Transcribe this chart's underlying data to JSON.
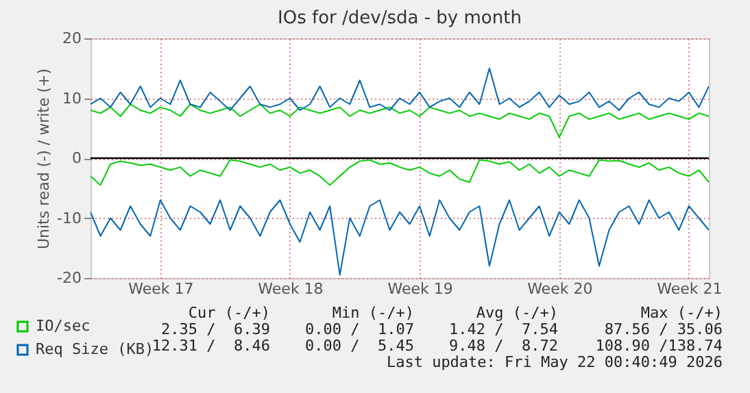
{
  "chart_data": {
    "type": "line",
    "title": "IOs for /dev/sda - by month",
    "ylabel": "Units read (-) / write (+)",
    "categories": [
      null,
      null,
      null,
      null,
      null,
      null,
      null,
      "Week 17",
      null,
      null,
      null,
      null,
      null,
      null,
      null,
      null,
      null,
      null,
      null,
      null,
      "Week 18",
      null,
      null,
      null,
      null,
      null,
      null,
      null,
      null,
      null,
      null,
      null,
      null,
      "Week 19",
      null,
      null,
      null,
      null,
      null,
      null,
      null,
      null,
      null,
      null,
      null,
      null,
      null,
      "Week 20",
      null,
      null,
      null,
      null,
      null,
      null,
      null,
      null,
      null,
      null,
      null,
      null,
      "Week 21",
      null,
      null
    ],
    "ylim": [
      -20,
      20
    ],
    "yticks": [
      -20,
      -10,
      0,
      10,
      20
    ],
    "grid": true,
    "legend": "bottom left",
    "series": [
      {
        "color": "#00cc00",
        "values": [
          -3,
          -4.5,
          -1,
          -0.5,
          -0.8,
          -1.2,
          -1,
          -1.5,
          -2,
          -1.5,
          -3,
          -2,
          -2.5,
          -3,
          -0.3,
          -0.5,
          -1,
          -1.5,
          -1,
          -2,
          -1.5,
          -2.5,
          -2,
          -3,
          -4.5,
          -3,
          -1.5,
          -0.5,
          -0.3,
          -1,
          -0.8,
          -1.5,
          -2,
          -1.5,
          -2.5,
          -3,
          -2,
          -3.5,
          -4,
          -0.3,
          -0.5,
          -1,
          -0.6,
          -2,
          -1,
          -2.5,
          -1.5,
          -3,
          -2,
          -2.5,
          -3,
          -0.3,
          -0.5,
          -0.4,
          -1,
          -1.5,
          -0.8,
          -2,
          -1.5,
          -2.5,
          -3,
          -2,
          -4
        ]
      },
      {
        "name": "IO/sec",
        "color": "#00cc00",
        "values": [
          8,
          7.5,
          8.5,
          7,
          9,
          8,
          7.5,
          8.5,
          8,
          7,
          9,
          8,
          7.5,
          8,
          8.5,
          7,
          8,
          9,
          7.5,
          8,
          7,
          8.5,
          8,
          7.5,
          8,
          8.5,
          7,
          8,
          7.5,
          8,
          8.5,
          7.5,
          8,
          7,
          8.5,
          8,
          7.5,
          8,
          7,
          7.5,
          7,
          6.5,
          7.5,
          7,
          6.5,
          7.5,
          7,
          3.5,
          7,
          7.5,
          6.5,
          7,
          7.5,
          6.5,
          7,
          7.5,
          6.5,
          7,
          7.5,
          7,
          6.5,
          7.5,
          7
        ]
      },
      {
        "color": "#0066b3",
        "values": [
          -9,
          -13,
          -10,
          -12,
          -8,
          -11,
          -13,
          -7,
          -10,
          -12,
          -8,
          -9,
          -11,
          -7,
          -12,
          -8,
          -10,
          -13,
          -9,
          -7,
          -11,
          -14,
          -9,
          -12,
          -8,
          -19.5,
          -10,
          -13,
          -8,
          -7,
          -12,
          -9,
          -11,
          -8,
          -13,
          -7,
          -10,
          -12,
          -9,
          -8,
          -18,
          -11,
          -7,
          -12,
          -10,
          -8,
          -13,
          -9,
          -11,
          -7,
          -10,
          -18,
          -12,
          -9,
          -8,
          -11,
          -7,
          -10,
          -9,
          -12,
          -8,
          -10,
          -12
        ]
      },
      {
        "name": "Req Size (KB)",
        "color": "#0066b3",
        "values": [
          9,
          10,
          8.5,
          11,
          9,
          12,
          8.5,
          10,
          9,
          13,
          9,
          8.5,
          11,
          9.5,
          8,
          10,
          12,
          9,
          8.5,
          9,
          10,
          8,
          9,
          12,
          8.5,
          10,
          9,
          13,
          8.5,
          9,
          8,
          10,
          9,
          11,
          8.5,
          9.5,
          10,
          8.5,
          11,
          9,
          15,
          9,
          10,
          8.5,
          9.5,
          11,
          8.5,
          10.5,
          9,
          9.5,
          11,
          8.5,
          9.5,
          8,
          10,
          11,
          9,
          8.5,
          10,
          9.5,
          11,
          8.5,
          12
        ]
      }
    ],
    "ref_lines": [
      {
        "axis": "y",
        "value": 0,
        "color": "#000000"
      }
    ],
    "annotations": [
      "Cur (-/+)",
      "Min (-/+)",
      "Avg (-/+)",
      "Max (-/+)",
      "2.35 /  6.39",
      "0.00 /  1.07",
      "1.42 /  7.54",
      "87.56 / 35.06",
      "12.31 /  8.46",
      "0.00 /  5.45",
      "9.48 /  8.72",
      "108.90 /138.74",
      "Last update: Fri May 22 00:40:49 2026"
    ]
  }
}
